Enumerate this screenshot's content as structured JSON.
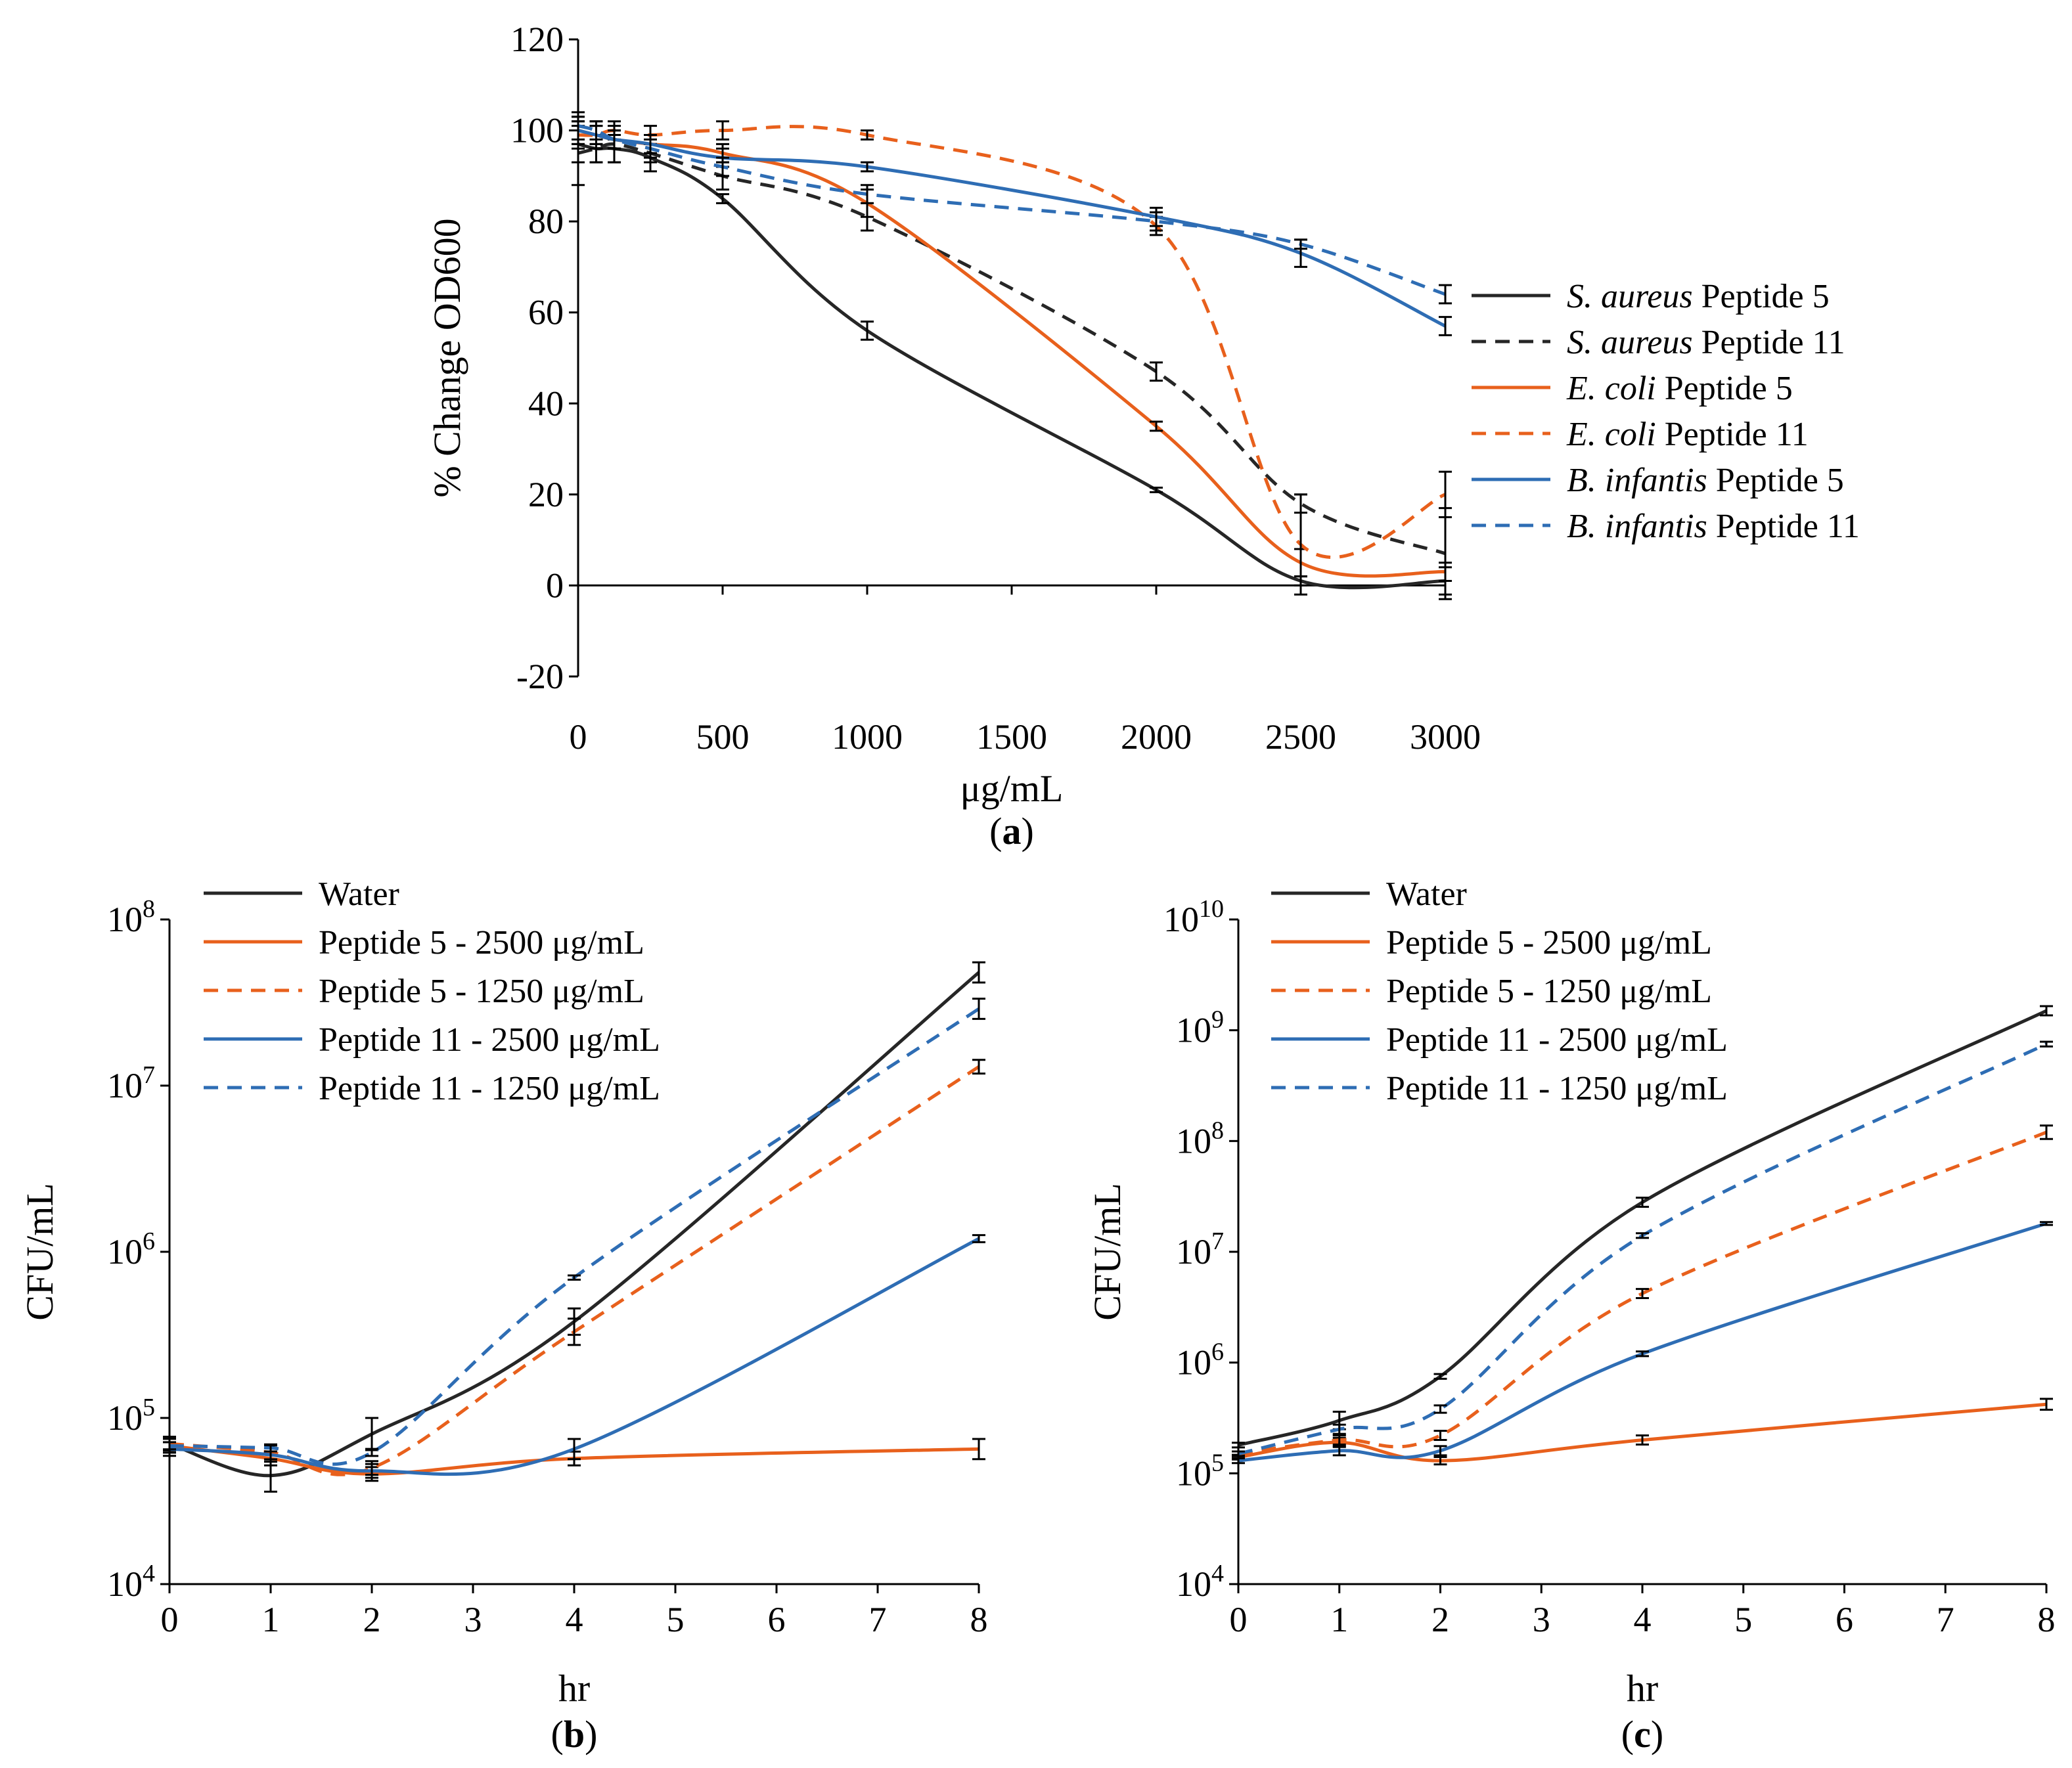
{
  "colors": {
    "black": "#262626",
    "orange": "#E8601C",
    "blue": "#2E6DB4"
  },
  "chart_data": [
    {
      "id": "a",
      "type": "line",
      "panel_label": "a",
      "xlabel": "μg/mL",
      "ylabel": "% Change OD600",
      "xlim": [
        0,
        3000
      ],
      "ylim": [
        -20,
        120
      ],
      "xticks": [
        "0",
        "500",
        "1000",
        "1500",
        "2000",
        "2500",
        "3000"
      ],
      "yticks": [
        "-20",
        "0",
        "20",
        "40",
        "60",
        "80",
        "100",
        "120"
      ],
      "legend": "right",
      "series": [
        {
          "species": "S. aureus",
          "suffix": " Peptide 5",
          "color": "black",
          "dash": false,
          "x": [
            0,
            62.5,
            125,
            250,
            500,
            1000,
            2000,
            2500,
            3000
          ],
          "y": [
            97,
            96,
            96,
            94,
            85,
            56,
            21,
            1,
            1
          ],
          "err": [
            4,
            3,
            3,
            3,
            1,
            2,
            0.5,
            1,
            3
          ]
        },
        {
          "species": "S. aureus",
          "suffix": " Peptide 11",
          "color": "black",
          "dash": true,
          "x": [
            0,
            62.5,
            125,
            250,
            500,
            1000,
            2000,
            2500,
            3000
          ],
          "y": [
            95,
            96,
            97,
            95,
            90,
            81,
            47,
            18,
            7
          ],
          "err": [
            7,
            3,
            4,
            2,
            3,
            3,
            2,
            2,
            10
          ]
        },
        {
          "species": "E. coli",
          "suffix": " Peptide 5",
          "color": "orange",
          "dash": false,
          "x": [
            0,
            62.5,
            125,
            250,
            500,
            1000,
            2000,
            2500,
            3000
          ],
          "y": [
            100,
            99,
            98,
            97,
            95,
            84,
            35,
            5,
            3
          ],
          "err": [
            3,
            2,
            2,
            2,
            2,
            3,
            1,
            3,
            2
          ]
        },
        {
          "species": "E. coli",
          "suffix": " Peptide 11",
          "color": "orange",
          "dash": true,
          "x": [
            0,
            62.5,
            125,
            250,
            500,
            1000,
            2000,
            2500,
            3000
          ],
          "y": [
            99,
            99,
            100,
            99,
            100,
            99,
            79,
            9,
            20
          ],
          "err": [
            3,
            2,
            2,
            2,
            2,
            1,
            2,
            11,
            5
          ]
        },
        {
          "species": "B. infantis",
          "suffix": " Peptide 5",
          "color": "blue",
          "dash": false,
          "x": [
            0,
            62.5,
            125,
            250,
            500,
            1000,
            2000,
            2500,
            3000
          ],
          "y": [
            100,
            99,
            98,
            97,
            94,
            92,
            81,
            73,
            57
          ],
          "err": [
            3,
            3,
            2,
            2,
            2,
            1,
            2,
            3,
            2
          ]
        },
        {
          "species": "B. infantis",
          "suffix": " Peptide 11",
          "color": "blue",
          "dash": true,
          "x": [
            0,
            62.5,
            125,
            250,
            500,
            1000,
            2000,
            2500,
            3000
          ],
          "y": [
            101,
            100,
            98,
            96,
            92,
            86,
            80,
            75,
            64
          ],
          "err": [
            3,
            2,
            2,
            2,
            2,
            2,
            2,
            1,
            2
          ]
        }
      ]
    },
    {
      "id": "b",
      "type": "line",
      "yscale": "log",
      "panel_label": "b",
      "xlabel": "hr",
      "ylabel": "CFU/mL",
      "xlim": [
        0,
        8
      ],
      "ylim_exp": [
        4,
        8
      ],
      "xticks": [
        "0",
        "1",
        "2",
        "3",
        "4",
        "5",
        "6",
        "7",
        "8"
      ],
      "yticks_exp": [
        "4",
        "5",
        "6",
        "7",
        "8"
      ],
      "ytick_base": "10",
      "legend": "top-left",
      "series": [
        {
          "name": "Water",
          "color": "black",
          "dash": false,
          "x": [
            0,
            1,
            2,
            4,
            8
          ],
          "y": [
            70000,
            45000,
            80000,
            380000,
            48000000
          ],
          "err_factor": [
            1.1,
            1.25,
            1.25,
            1.2,
            1.15
          ]
        },
        {
          "name": "Peptide 5 - 2500  μg/mL",
          "color": "orange",
          "dash": false,
          "x": [
            0,
            1,
            2,
            4,
            8
          ],
          "y": [
            68000,
            57000,
            46000,
            57000,
            65000
          ],
          "err_factor": [
            1.1,
            1.1,
            1.1,
            1.1,
            1.15
          ]
        },
        {
          "name": "Peptide 5 - 1250  μg/mL",
          "color": "orange",
          "dash": true,
          "x": [
            0,
            1,
            2,
            4,
            8
          ],
          "y": [
            70000,
            62000,
            50000,
            330000,
            13000000
          ],
          "err_factor": [
            1.1,
            1.1,
            1.1,
            1.2,
            1.1
          ]
        },
        {
          "name": "Peptide 11 - 2500  μg/mL",
          "color": "blue",
          "dash": false,
          "x": [
            0,
            1,
            2,
            4,
            8
          ],
          "y": [
            65000,
            60000,
            48000,
            65000,
            1200000
          ],
          "err_factor": [
            1.1,
            1.1,
            1.1,
            1.15,
            1.05
          ]
        },
        {
          "name": "Peptide 11 - 1250  μg/mL",
          "color": "blue",
          "dash": true,
          "x": [
            0,
            1,
            2,
            4,
            8
          ],
          "y": [
            68000,
            66000,
            62000,
            700000,
            29000000
          ],
          "err_factor": [
            1.05,
            1.05,
            1.05,
            1.03,
            1.15
          ]
        }
      ]
    },
    {
      "id": "c",
      "type": "line",
      "yscale": "log",
      "panel_label": "c",
      "xlabel": "hr",
      "ylabel": "CFU/mL",
      "xlim": [
        0,
        8
      ],
      "ylim_exp": [
        4,
        10
      ],
      "xticks": [
        "0",
        "1",
        "2",
        "3",
        "4",
        "5",
        "6",
        "7",
        "8"
      ],
      "yticks_exp": [
        "4",
        "5",
        "6",
        "7",
        "8",
        "9",
        "10"
      ],
      "ytick_base": "10",
      "legend": "top-left",
      "series": [
        {
          "name": "Water",
          "color": "black",
          "dash": false,
          "x": [
            0,
            1,
            2,
            4,
            8
          ],
          "y": [
            180000,
            300000,
            750000,
            28000000,
            1500000000
          ],
          "err_factor": [
            1.05,
            1.2,
            1.05,
            1.1,
            1.1
          ]
        },
        {
          "name": "Peptide 5 - 2500  μg/mL",
          "color": "orange",
          "dash": false,
          "x": [
            0,
            1,
            2,
            4,
            8
          ],
          "y": [
            140000,
            190000,
            130000,
            200000,
            420000
          ],
          "err_factor": [
            1.05,
            1.1,
            1.08,
            1.1,
            1.12
          ]
        },
        {
          "name": "Peptide 5 - 1250  μg/mL",
          "color": "orange",
          "dash": true,
          "x": [
            0,
            1,
            2,
            4,
            8
          ],
          "y": [
            150000,
            200000,
            220000,
            4200000,
            120000000
          ],
          "err_factor": [
            1.05,
            1.1,
            1.1,
            1.1,
            1.15
          ]
        },
        {
          "name": "Peptide 11 - 2500  μg/mL",
          "color": "blue",
          "dash": false,
          "x": [
            0,
            1,
            2,
            4,
            8
          ],
          "y": [
            130000,
            160000,
            160000,
            1200000,
            18000000
          ],
          "err_factor": [
            1.05,
            1.1,
            1.1,
            1.05,
            1.03
          ]
        },
        {
          "name": "Peptide 11 - 1250  μg/mL",
          "color": "blue",
          "dash": true,
          "x": [
            0,
            1,
            2,
            4,
            8
          ],
          "y": [
            150000,
            250000,
            380000,
            14000000,
            750000000
          ],
          "err_factor": [
            1.05,
            1.1,
            1.08,
            1.05,
            1.05
          ]
        }
      ]
    }
  ]
}
